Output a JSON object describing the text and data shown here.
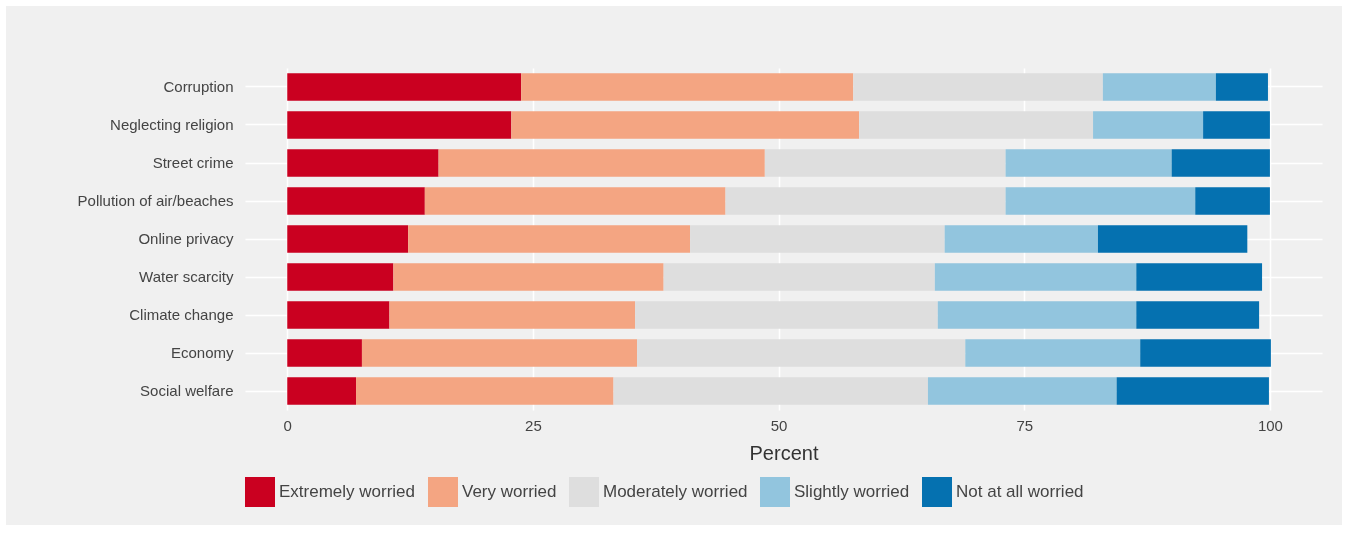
{
  "chart_data": {
    "type": "bar",
    "orientation": "horizontal",
    "stacked": true,
    "xlabel": "Percent",
    "categories": [
      "Corruption",
      "Neglecting religion",
      "Street crime",
      "Pollution of air/beaches",
      "Online privacy",
      "Water scarcity",
      "Climate change",
      "Economy",
      "Social welfare"
    ],
    "series": [
      {
        "name": "Extremely worried",
        "color": "#ca0020",
        "values": [
          23.8,
          22.8,
          15.4,
          14.0,
          12.3,
          10.8,
          10.4,
          7.6,
          7.0
        ]
      },
      {
        "name": "Very worried",
        "color": "#f4a582",
        "values": [
          33.8,
          35.4,
          33.2,
          30.6,
          28.7,
          27.5,
          25.0,
          28.0,
          26.2
        ]
      },
      {
        "name": "Moderately worried",
        "color": "#dedede",
        "values": [
          25.4,
          23.8,
          24.5,
          28.5,
          25.9,
          27.6,
          30.8,
          33.4,
          32.0
        ]
      },
      {
        "name": "Slightly worried",
        "color": "#92c5de",
        "values": [
          11.5,
          11.2,
          16.9,
          19.3,
          15.6,
          20.5,
          20.2,
          17.8,
          19.2
        ]
      },
      {
        "name": "Not at all worried",
        "color": "#0571b0",
        "values": [
          5.3,
          6.8,
          10.0,
          7.6,
          15.2,
          12.8,
          12.5,
          13.3,
          15.5
        ]
      }
    ],
    "xlim": [
      -4.3,
      105.3
    ],
    "xticks": [
      0,
      25,
      50,
      75,
      100
    ],
    "grid": true,
    "legend": "bottom"
  }
}
